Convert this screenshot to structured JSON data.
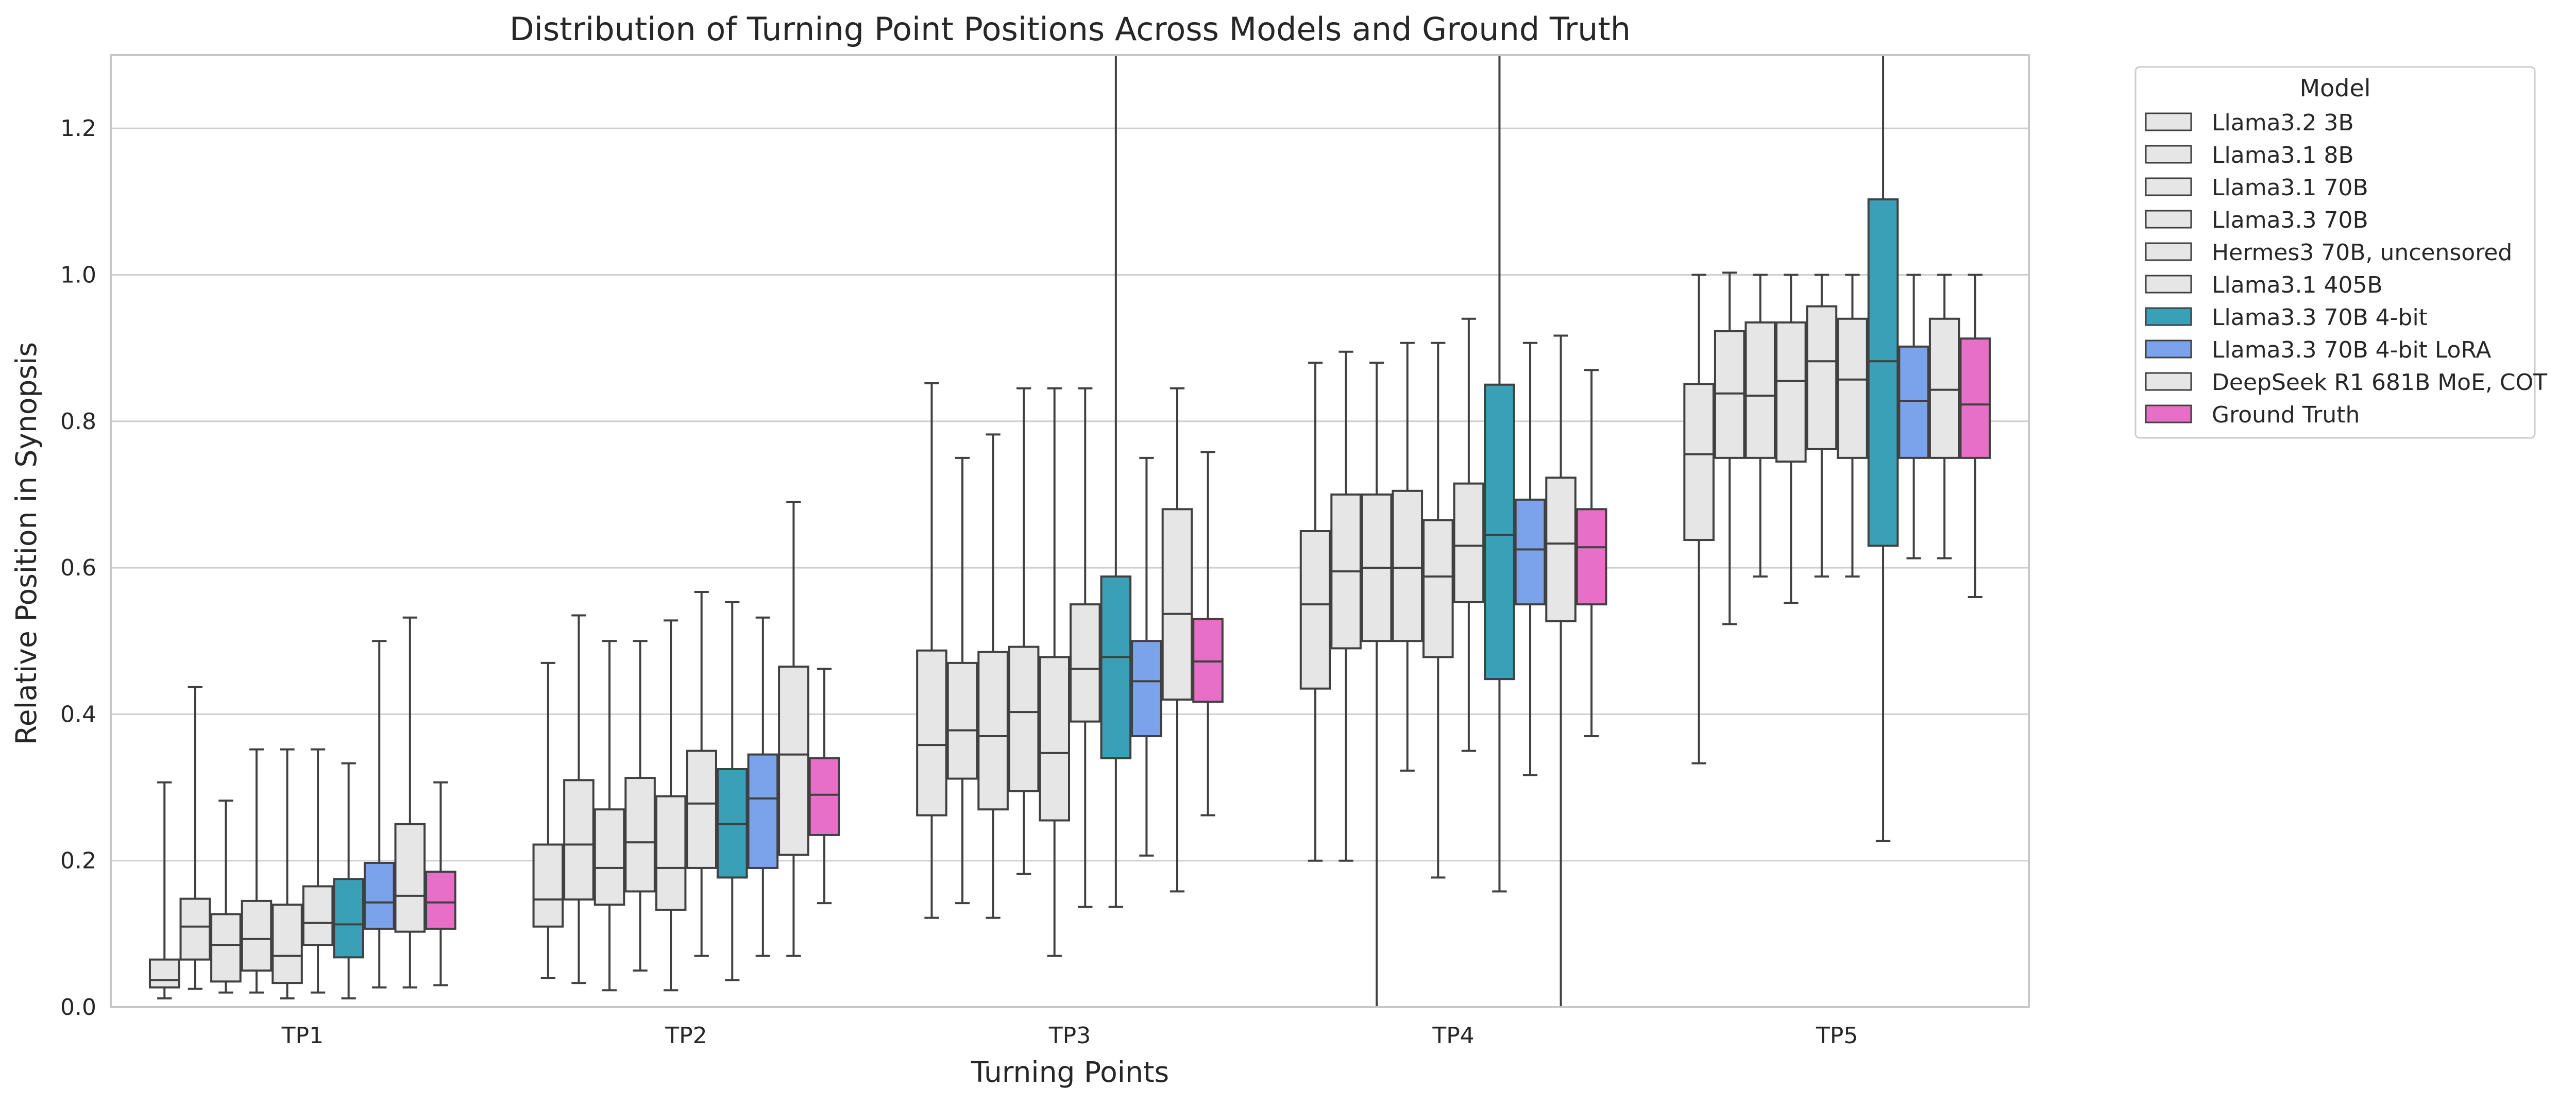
{
  "chart_data": {
    "type": "boxplot",
    "title": "Distribution of Turning Point Positions Across Models and Ground Truth",
    "xlabel": "Turning Points",
    "ylabel": "Relative Position in Synopsis",
    "categories": [
      "TP1",
      "TP2",
      "TP3",
      "TP4",
      "TP5"
    ],
    "ylim": [
      0,
      1.3
    ],
    "yticks": [
      0.0,
      0.2,
      0.4,
      0.6,
      0.8,
      1.0,
      1.2
    ],
    "ytick_labels": [
      "0.0",
      "0.2",
      "0.4",
      "0.6",
      "0.8",
      "1.0",
      "1.2"
    ],
    "grid": true,
    "legend": {
      "title": "Model",
      "placement": "outside-right"
    },
    "series": [
      {
        "name": "Llama3.2 3B",
        "color": "#e6e6e6",
        "boxes": [
          {
            "whislo": 0.012,
            "q1": 0.027,
            "med": 0.037,
            "q3": 0.065,
            "whishi": 0.307
          },
          {
            "whislo": 0.04,
            "q1": 0.11,
            "med": 0.147,
            "q3": 0.222,
            "whishi": 0.47
          },
          {
            "whislo": 0.122,
            "q1": 0.262,
            "med": 0.358,
            "q3": 0.487,
            "whishi": 0.852
          },
          {
            "whislo": 0.2,
            "q1": 0.435,
            "med": 0.55,
            "q3": 0.65,
            "whishi": 0.88
          },
          {
            "whislo": 0.333,
            "q1": 0.638,
            "med": 0.755,
            "q3": 0.851,
            "whishi": 1.0
          }
        ]
      },
      {
        "name": "Llama3.1 8B",
        "color": "#e6e6e6",
        "boxes": [
          {
            "whislo": 0.025,
            "q1": 0.065,
            "med": 0.11,
            "q3": 0.148,
            "whishi": 0.437
          },
          {
            "whislo": 0.033,
            "q1": 0.147,
            "med": 0.222,
            "q3": 0.31,
            "whishi": 0.535
          },
          {
            "whislo": 0.142,
            "q1": 0.312,
            "med": 0.378,
            "q3": 0.47,
            "whishi": 0.75
          },
          {
            "whislo": 0.2,
            "q1": 0.49,
            "med": 0.595,
            "q3": 0.7,
            "whishi": 0.895
          },
          {
            "whislo": 0.523,
            "q1": 0.75,
            "med": 0.838,
            "q3": 0.923,
            "whishi": 1.003
          }
        ]
      },
      {
        "name": "Llama3.1 70B",
        "color": "#e6e6e6",
        "boxes": [
          {
            "whislo": 0.02,
            "q1": 0.035,
            "med": 0.085,
            "q3": 0.127,
            "whishi": 0.282
          },
          {
            "whislo": 0.023,
            "q1": 0.14,
            "med": 0.19,
            "q3": 0.27,
            "whishi": 0.5
          },
          {
            "whislo": 0.122,
            "q1": 0.27,
            "med": 0.37,
            "q3": 0.485,
            "whishi": 0.782
          },
          {
            "whislo": 0.0,
            "q1": 0.5,
            "med": 0.6,
            "q3": 0.7,
            "whishi": 0.88
          },
          {
            "whislo": 0.588,
            "q1": 0.75,
            "med": 0.835,
            "q3": 0.935,
            "whishi": 1.0
          }
        ]
      },
      {
        "name": "Llama3.3 70B",
        "color": "#e6e6e6",
        "boxes": [
          {
            "whislo": 0.02,
            "q1": 0.05,
            "med": 0.093,
            "q3": 0.145,
            "whishi": 0.352
          },
          {
            "whislo": 0.05,
            "q1": 0.158,
            "med": 0.225,
            "q3": 0.313,
            "whishi": 0.5
          },
          {
            "whislo": 0.182,
            "q1": 0.295,
            "med": 0.403,
            "q3": 0.492,
            "whishi": 0.845
          },
          {
            "whislo": 0.323,
            "q1": 0.5,
            "med": 0.6,
            "q3": 0.705,
            "whishi": 0.907
          },
          {
            "whislo": 0.552,
            "q1": 0.745,
            "med": 0.855,
            "q3": 0.935,
            "whishi": 1.0
          }
        ]
      },
      {
        "name": "Hermes3 70B, uncensored",
        "color": "#e6e6e6",
        "boxes": [
          {
            "whislo": 0.012,
            "q1": 0.033,
            "med": 0.07,
            "q3": 0.14,
            "whishi": 0.352
          },
          {
            "whislo": 0.023,
            "q1": 0.133,
            "med": 0.19,
            "q3": 0.288,
            "whishi": 0.528
          },
          {
            "whislo": 0.07,
            "q1": 0.255,
            "med": 0.347,
            "q3": 0.478,
            "whishi": 0.845
          },
          {
            "whislo": 0.177,
            "q1": 0.478,
            "med": 0.588,
            "q3": 0.665,
            "whishi": 0.907
          },
          {
            "whislo": 0.588,
            "q1": 0.762,
            "med": 0.882,
            "q3": 0.957,
            "whishi": 1.0
          }
        ]
      },
      {
        "name": "Llama3.1 405B",
        "color": "#e6e6e6",
        "boxes": [
          {
            "whislo": 0.02,
            "q1": 0.085,
            "med": 0.115,
            "q3": 0.165,
            "whishi": 0.352
          },
          {
            "whislo": 0.07,
            "q1": 0.19,
            "med": 0.278,
            "q3": 0.35,
            "whishi": 0.567
          },
          {
            "whislo": 0.137,
            "q1": 0.39,
            "med": 0.462,
            "q3": 0.55,
            "whishi": 0.845
          },
          {
            "whislo": 0.35,
            "q1": 0.553,
            "med": 0.63,
            "q3": 0.715,
            "whishi": 0.94
          },
          {
            "whislo": 0.588,
            "q1": 0.75,
            "med": 0.857,
            "q3": 0.94,
            "whishi": 1.0
          }
        ]
      },
      {
        "name": "Llama3.3 70B 4-bit",
        "color": "#3aa0b8",
        "boxes": [
          {
            "whislo": 0.012,
            "q1": 0.068,
            "med": 0.113,
            "q3": 0.175,
            "whishi": 0.333
          },
          {
            "whislo": 0.037,
            "q1": 0.177,
            "med": 0.25,
            "q3": 0.325,
            "whishi": 0.553
          },
          {
            "whislo": 0.137,
            "q1": 0.34,
            "med": 0.478,
            "q3": 0.588,
            "whishi": 1.3
          },
          {
            "whislo": 0.158,
            "q1": 0.448,
            "med": 0.645,
            "q3": 0.85,
            "whishi": 1.3
          },
          {
            "whislo": 0.227,
            "q1": 0.63,
            "med": 0.882,
            "q3": 1.103,
            "whishi": 1.3
          }
        ]
      },
      {
        "name": "Llama3.3 70B 4-bit LoRA",
        "color": "#7ba3ec",
        "boxes": [
          {
            "whislo": 0.027,
            "q1": 0.107,
            "med": 0.143,
            "q3": 0.197,
            "whishi": 0.5
          },
          {
            "whislo": 0.07,
            "q1": 0.19,
            "med": 0.285,
            "q3": 0.345,
            "whishi": 0.532
          },
          {
            "whislo": 0.207,
            "q1": 0.37,
            "med": 0.445,
            "q3": 0.5,
            "whishi": 0.75
          },
          {
            "whislo": 0.317,
            "q1": 0.55,
            "med": 0.625,
            "q3": 0.693,
            "whishi": 0.907
          },
          {
            "whislo": 0.613,
            "q1": 0.75,
            "med": 0.828,
            "q3": 0.902,
            "whishi": 1.0
          }
        ]
      },
      {
        "name": "DeepSeek R1 681B MoE, COT",
        "color": "#e6e6e6",
        "boxes": [
          {
            "whislo": 0.027,
            "q1": 0.103,
            "med": 0.152,
            "q3": 0.25,
            "whishi": 0.532
          },
          {
            "whislo": 0.07,
            "q1": 0.208,
            "med": 0.345,
            "q3": 0.465,
            "whishi": 0.69
          },
          {
            "whislo": 0.158,
            "q1": 0.42,
            "med": 0.537,
            "q3": 0.68,
            "whishi": 0.845
          },
          {
            "whislo": 0.0,
            "q1": 0.527,
            "med": 0.633,
            "q3": 0.723,
            "whishi": 0.917
          },
          {
            "whislo": 0.613,
            "q1": 0.75,
            "med": 0.843,
            "q3": 0.94,
            "whishi": 1.0
          }
        ]
      },
      {
        "name": "Ground Truth",
        "color": "#e86fc8",
        "boxes": [
          {
            "whislo": 0.03,
            "q1": 0.107,
            "med": 0.143,
            "q3": 0.185,
            "whishi": 0.307
          },
          {
            "whislo": 0.142,
            "q1": 0.235,
            "med": 0.29,
            "q3": 0.34,
            "whishi": 0.462
          },
          {
            "whislo": 0.262,
            "q1": 0.417,
            "med": 0.472,
            "q3": 0.53,
            "whishi": 0.758
          },
          {
            "whislo": 0.37,
            "q1": 0.55,
            "med": 0.628,
            "q3": 0.68,
            "whishi": 0.87
          },
          {
            "whislo": 0.56,
            "q1": 0.75,
            "med": 0.823,
            "q3": 0.913,
            "whishi": 1.0
          }
        ]
      }
    ]
  }
}
